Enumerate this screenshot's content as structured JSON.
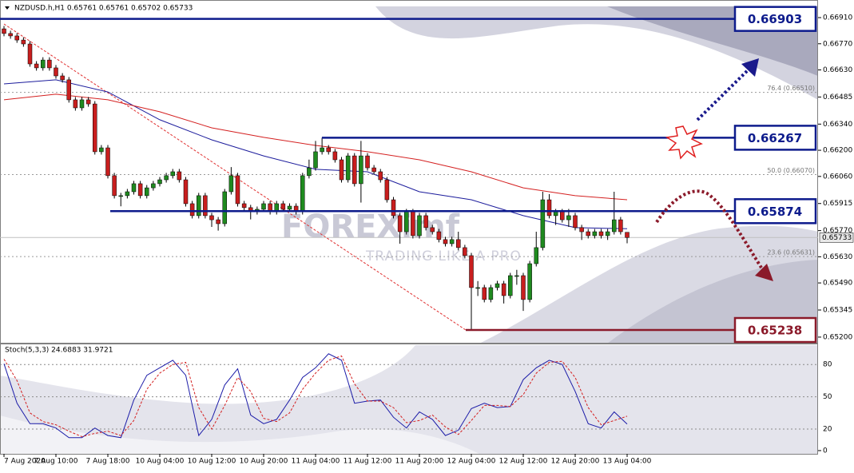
{
  "chart_data": {
    "type": "candlestick",
    "title": "NZDUSD.h,H1  0.65761 0.65761 0.65702 0.65733",
    "categories": [
      "7 Aug 2020",
      null,
      null,
      null,
      null,
      null,
      null,
      null,
      "7 Aug 10:00",
      null,
      null,
      null,
      null,
      null,
      null,
      null,
      "7 Aug 18:00",
      null,
      null,
      null,
      null,
      null,
      null,
      null,
      "10 Aug 04:00",
      null,
      null,
      null,
      null,
      null,
      null,
      null,
      "10 Aug 12:00",
      null,
      null,
      null,
      null,
      null,
      null,
      null,
      "10 Aug 20:00",
      null,
      null,
      null,
      null,
      null,
      null,
      null,
      "11 Aug 04:00",
      null,
      null,
      null,
      null,
      null,
      null,
      null,
      "11 Aug 12:00",
      null,
      null,
      null,
      null,
      null,
      null,
      null,
      "11 Aug 20:00",
      null,
      null,
      null,
      null,
      null,
      null,
      null,
      "12 Aug 04:00",
      null,
      null,
      null,
      null,
      null,
      null,
      null,
      "12 Aug 12:00",
      null,
      null,
      null,
      null,
      null,
      null,
      null,
      "12 Aug 20:00",
      null,
      null,
      null,
      null,
      null,
      null,
      null,
      "13 Aug 04:00"
    ],
    "open": [
      0.6685,
      0.66825,
      0.66812,
      0.6679,
      0.66769,
      0.66662,
      0.66641,
      0.66683,
      0.66641,
      0.66598,
      0.66577,
      0.6647,
      0.66427,
      0.6647,
      0.66448,
      0.66192,
      0.66213,
      0.66064,
      0.65957,
      0.65957,
      0.65978,
      0.66021,
      0.65957,
      0.65999,
      0.66021,
      0.66042,
      0.66064,
      0.66085,
      0.66042,
      0.65914,
      0.6585,
      0.65957,
      0.6585,
      0.65828,
      0.65807,
      0.65978,
      0.66064,
      0.65914,
      0.65893,
      0.65871,
      0.65884,
      0.65914,
      0.65871,
      0.65914,
      0.65884,
      0.65901,
      0.65871,
      0.66064,
      0.66106,
      0.66192,
      0.66213,
      0.66192,
      0.66149,
      0.66042,
      0.6617,
      0.66021,
      0.6617,
      0.66106,
      0.66085,
      0.66042,
      0.65935,
      0.6585,
      0.65764,
      0.65871,
      0.65743,
      0.6585,
      0.65786,
      0.65764,
      0.65722,
      0.657,
      0.65722,
      0.65679,
      0.65636,
      0.65465,
      0.65465,
      0.65401,
      0.65465,
      0.65486,
      0.65422,
      0.65529,
      0.65529,
      0.65401,
      0.65593,
      0.65679,
      0.65935,
      0.6585,
      0.65871,
      0.65828,
      0.6585,
      0.65786,
      0.65764,
      0.65743,
      0.65764,
      0.65743,
      0.65764,
      0.65828,
      0.65761
    ],
    "high": [
      0.66865,
      0.6684,
      0.66827,
      0.66805,
      0.66784,
      0.66677,
      0.66698,
      0.66698,
      0.66656,
      0.66613,
      0.66592,
      0.66485,
      0.66485,
      0.66485,
      0.66463,
      0.66228,
      0.66228,
      0.66079,
      0.65972,
      0.65993,
      0.66036,
      0.66036,
      0.66014,
      0.66036,
      0.66057,
      0.66079,
      0.661,
      0.661,
      0.66057,
      0.65929,
      0.65972,
      0.65972,
      0.65865,
      0.65843,
      0.65993,
      0.6611,
      0.66079,
      0.65929,
      0.65908,
      0.65899,
      0.65929,
      0.65929,
      0.65929,
      0.65929,
      0.65916,
      0.65916,
      0.66079,
      0.6615,
      0.6625,
      0.66267,
      0.66228,
      0.66207,
      0.66164,
      0.66185,
      0.66185,
      0.6625,
      0.66185,
      0.66121,
      0.661,
      0.66057,
      0.6595,
      0.65865,
      0.65886,
      0.65886,
      0.65865,
      0.65865,
      0.65801,
      0.65779,
      0.65737,
      0.65737,
      0.65764,
      0.65694,
      0.65651,
      0.655,
      0.6548,
      0.6548,
      0.65501,
      0.65501,
      0.65544,
      0.6556,
      0.65544,
      0.65608,
      0.65764,
      0.65978,
      0.65965,
      0.65886,
      0.65886,
      0.65886,
      0.65865,
      0.65801,
      0.65779,
      0.65779,
      0.65779,
      0.65779,
      0.65978,
      0.65843,
      0.65761
    ],
    "low": [
      0.6681,
      0.66797,
      0.66775,
      0.66754,
      0.66647,
      0.66626,
      0.66626,
      0.66626,
      0.66583,
      0.66562,
      0.66455,
      0.66412,
      0.66412,
      0.66433,
      0.66177,
      0.66177,
      0.66049,
      0.65942,
      0.659,
      0.65942,
      0.65963,
      0.65942,
      0.65942,
      0.65984,
      0.66006,
      0.66027,
      0.66049,
      0.66027,
      0.65899,
      0.65835,
      0.65835,
      0.65835,
      0.6579,
      0.6577,
      0.65792,
      0.65963,
      0.65899,
      0.65878,
      0.6583,
      0.65856,
      0.65869,
      0.65856,
      0.65856,
      0.65869,
      0.65869,
      0.65856,
      0.65856,
      0.66049,
      0.66091,
      0.66177,
      0.66177,
      0.66134,
      0.66027,
      0.66027,
      0.66006,
      0.6592,
      0.66091,
      0.6607,
      0.66027,
      0.6592,
      0.65835,
      0.657,
      0.65749,
      0.65728,
      0.65728,
      0.65771,
      0.65749,
      0.65707,
      0.65685,
      0.65685,
      0.65664,
      0.65621,
      0.65238,
      0.6542,
      0.65386,
      0.65386,
      0.6545,
      0.6538,
      0.65407,
      0.6548,
      0.6534,
      0.65386,
      0.65578,
      0.65664,
      0.65835,
      0.658,
      0.65813,
      0.6579,
      0.65771,
      0.6572,
      0.65728,
      0.65728,
      0.65728,
      0.6572,
      0.65749,
      0.65749,
      0.65702
    ],
    "close": [
      0.66825,
      0.66812,
      0.6679,
      0.66769,
      0.66662,
      0.66641,
      0.66683,
      0.66641,
      0.66598,
      0.66577,
      0.6647,
      0.66427,
      0.6647,
      0.66448,
      0.66192,
      0.66213,
      0.66064,
      0.65957,
      0.65957,
      0.65978,
      0.66021,
      0.65957,
      0.65999,
      0.66021,
      0.66042,
      0.66064,
      0.66085,
      0.66042,
      0.65914,
      0.6585,
      0.65957,
      0.6585,
      0.65828,
      0.65807,
      0.65978,
      0.66064,
      0.65914,
      0.65893,
      0.65871,
      0.65884,
      0.65914,
      0.65871,
      0.65914,
      0.65884,
      0.65901,
      0.65871,
      0.66064,
      0.66106,
      0.66192,
      0.66213,
      0.66192,
      0.66149,
      0.66042,
      0.6617,
      0.66021,
      0.6617,
      0.66106,
      0.66085,
      0.66042,
      0.65935,
      0.6585,
      0.65764,
      0.65871,
      0.65743,
      0.6585,
      0.65786,
      0.65764,
      0.65722,
      0.657,
      0.65722,
      0.65679,
      0.65636,
      0.65465,
      0.65465,
      0.65401,
      0.65465,
      0.65486,
      0.65422,
      0.65529,
      0.65529,
      0.65401,
      0.65593,
      0.65679,
      0.65935,
      0.6585,
      0.65871,
      0.65828,
      0.6585,
      0.65786,
      0.65764,
      0.65743,
      0.65764,
      0.65743,
      0.65764,
      0.65828,
      0.65764,
      0.65733
    ],
    "up_color": "#1f8a1f",
    "down_color": "#c81e1e",
    "ylim": [
      0.65174,
      0.6697
    ],
    "yticks": [
      {
        "value": 0.6691,
        "label": "0.66910"
      },
      {
        "value": 0.6677,
        "label": "0.66770"
      },
      {
        "value": 0.6663,
        "label": "0.66630"
      },
      {
        "value": 0.66485,
        "label": "0.66485"
      },
      {
        "value": 0.6634,
        "label": "0.66340"
      },
      {
        "value": 0.662,
        "label": "0.66200"
      },
      {
        "value": 0.6606,
        "label": "0.66060"
      },
      {
        "value": 0.65915,
        "label": "0.65915"
      },
      {
        "value": 0.6577,
        "label": "0.65770"
      },
      {
        "value": 0.6563,
        "label": "0.65630"
      },
      {
        "value": 0.6549,
        "label": "0.65490"
      },
      {
        "value": 0.65345,
        "label": "0.65345"
      },
      {
        "value": 0.652,
        "label": "0.65200"
      }
    ],
    "ma": [
      {
        "color": "#1c1c9c",
        "x": [
          0,
          8,
          16,
          24,
          32,
          40,
          48,
          56,
          64,
          72,
          80,
          88,
          96
        ],
        "values": [
          0.66555,
          0.66577,
          0.66512,
          0.66363,
          0.66256,
          0.6617,
          0.66098,
          0.66085,
          0.65978,
          0.65935,
          0.6585,
          0.65786,
          0.6578
        ]
      },
      {
        "color": "#d42020",
        "x": [
          0,
          8,
          16,
          24,
          32,
          40,
          48,
          56,
          64,
          72,
          80,
          88,
          96
        ],
        "values": [
          0.6647,
          0.665,
          0.6647,
          0.66406,
          0.6632,
          0.66269,
          0.66226,
          0.66192,
          0.66149,
          0.66085,
          0.65999,
          0.65957,
          0.65935
        ]
      }
    ],
    "levels": [
      {
        "value": 0.66903,
        "color": "#0d1b8c"
      },
      {
        "value": 0.66267,
        "color": "#0d1b8c"
      },
      {
        "value": 0.65874,
        "color": "#0d1b8c"
      },
      {
        "value": 0.65238,
        "color": "#8b1a2a"
      }
    ],
    "fib": [
      {
        "value": 0.6651,
        "label": "76.4 (0.66510)"
      },
      {
        "value": 0.6607,
        "label": "50.0 (0.66070)"
      },
      {
        "value": 0.65631,
        "label": "23.6 (0.65631)"
      }
    ],
    "watermark": {
      "brand": "FOREXimf",
      "slogan": "TRADING LIKE A PRO"
    },
    "stoch": {
      "title": "Stoch(5,3,3) 24.6883 31.9721",
      "ylim": [
        -3,
        98
      ],
      "yticks": [
        80,
        50,
        20,
        0
      ],
      "k": {
        "color": "#1c1ca8",
        "x": [
          0,
          2,
          4,
          6,
          8,
          10,
          12,
          14,
          16,
          18,
          20,
          22,
          24,
          26,
          28,
          30,
          32,
          34,
          36,
          38,
          40,
          42,
          44,
          46,
          48,
          50,
          52,
          54,
          56,
          58,
          60,
          62,
          64,
          66,
          68,
          70,
          72,
          74,
          76,
          78,
          80,
          82,
          84,
          86,
          88,
          90,
          92,
          94,
          96
        ],
        "values": [
          80.7,
          44,
          25,
          25,
          21,
          12,
          12,
          21,
          14,
          12,
          47,
          70,
          77,
          84,
          70,
          14,
          29,
          61,
          76,
          33,
          25,
          29,
          47,
          68,
          77,
          90,
          84,
          44,
          46,
          47,
          31,
          21,
          36,
          29,
          14,
          19,
          39,
          44,
          40,
          41,
          66,
          77,
          84,
          80,
          55,
          25,
          21,
          36,
          24.6883
        ]
      },
      "d": {
        "color": "#d42020",
        "x": [
          0,
          2,
          4,
          6,
          8,
          10,
          12,
          14,
          16,
          18,
          20,
          22,
          24,
          26,
          28,
          30,
          32,
          34,
          36,
          38,
          40,
          42,
          44,
          46,
          48,
          50,
          52,
          54,
          56,
          58,
          60,
          62,
          64,
          66,
          68,
          70,
          72,
          74,
          76,
          78,
          80,
          82,
          84,
          86,
          88,
          90,
          92,
          94,
          96
        ],
        "values": [
          85,
          65,
          35,
          27,
          24,
          18,
          13,
          16,
          18,
          14,
          28,
          57,
          72,
          80,
          82,
          40,
          20,
          42,
          68,
          55,
          30,
          27,
          35,
          57,
          72,
          84,
          88,
          62,
          46,
          46,
          40,
          26,
          28,
          33,
          22,
          15,
          28,
          42,
          42,
          41,
          52,
          72,
          82,
          83,
          68,
          40,
          24,
          28,
          31.9721
        ]
      }
    }
  }
}
